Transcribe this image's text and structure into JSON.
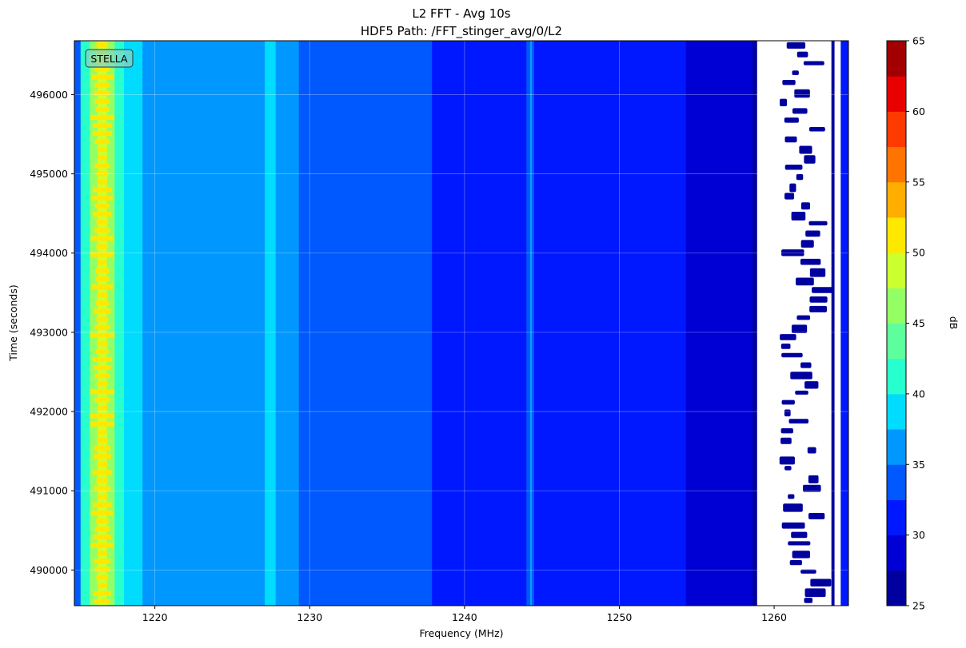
{
  "chart_data": {
    "type": "heatmap",
    "title_lines": [
      "L2 FFT - Avg 10s",
      "HDF5 Path: /FFT_stinger_avg/0/L2"
    ],
    "xlabel": "Frequency (MHz)",
    "ylabel": "Time (seconds)",
    "xlim": [
      1214.8,
      1264.8
    ],
    "ylim": [
      489550,
      496680
    ],
    "xticks": [
      1220,
      1230,
      1240,
      1250,
      1260
    ],
    "xtick_labels": [
      "1220",
      "1230",
      "1240",
      "1250",
      "1260"
    ],
    "yticks": [
      490000,
      491000,
      492000,
      493000,
      494000,
      495000,
      496000
    ],
    "ytick_labels": [
      "490000",
      "491000",
      "492000",
      "493000",
      "494000",
      "495000",
      "496000"
    ],
    "grid": true,
    "annotation": "STELLA",
    "colorbar": {
      "label": "dB",
      "range": [
        25,
        65
      ],
      "level_step": 2.5,
      "ticks": [
        25,
        30,
        35,
        40,
        45,
        50,
        55,
        60,
        65
      ],
      "tick_labels": [
        "25",
        "30",
        "35",
        "40",
        "45",
        "50",
        "55",
        "60",
        "65"
      ],
      "colors": [
        "#00009e",
        "#0000d4",
        "#0018ff",
        "#0058ff",
        "#0098ff",
        "#00dcfe",
        "#28ffce",
        "#5cff9c",
        "#94ff64",
        "#ccff2e",
        "#ffe800",
        "#ffae00",
        "#ff7400",
        "#ff3a00",
        "#e80000",
        "#a20000"
      ]
    },
    "frequency_profile": [
      {
        "from": 1214.8,
        "to": 1215.2,
        "db": 33.5
      },
      {
        "from": 1215.2,
        "to": 1215.8,
        "db": 40.5
      },
      {
        "from": 1215.8,
        "to": 1216.3,
        "db": 45.5
      },
      {
        "from": 1216.3,
        "to": 1216.9,
        "db": 48.5
      },
      {
        "from": 1216.9,
        "to": 1217.4,
        "db": 45.5
      },
      {
        "from": 1217.4,
        "to": 1218.0,
        "db": 40.5
      },
      {
        "from": 1218.0,
        "to": 1219.2,
        "db": 38.0
      },
      {
        "from": 1219.2,
        "to": 1227.1,
        "db": 35.5
      },
      {
        "from": 1227.1,
        "to": 1227.8,
        "db": 38.0
      },
      {
        "from": 1227.8,
        "to": 1229.3,
        "db": 35.5
      },
      {
        "from": 1229.3,
        "to": 1237.9,
        "db": 33.5
      },
      {
        "from": 1237.9,
        "to": 1244.0,
        "db": 31.0
      },
      {
        "from": 1244.0,
        "to": 1244.5,
        "db": 33.5
      },
      {
        "from": 1244.5,
        "to": 1254.3,
        "db": 31.0
      },
      {
        "from": 1254.3,
        "to": 1258.6,
        "db": 28.5
      },
      {
        "from": 1258.6,
        "to": 1258.9,
        "db": 26.0
      },
      {
        "from": 1258.9,
        "to": 1263.7,
        "db": null
      },
      {
        "from": 1263.7,
        "to": 1263.9,
        "db": 26.0
      },
      {
        "from": 1263.9,
        "to": 1264.3,
        "db": null
      },
      {
        "from": 1264.3,
        "to": 1264.8,
        "db": 31.0
      }
    ]
  }
}
